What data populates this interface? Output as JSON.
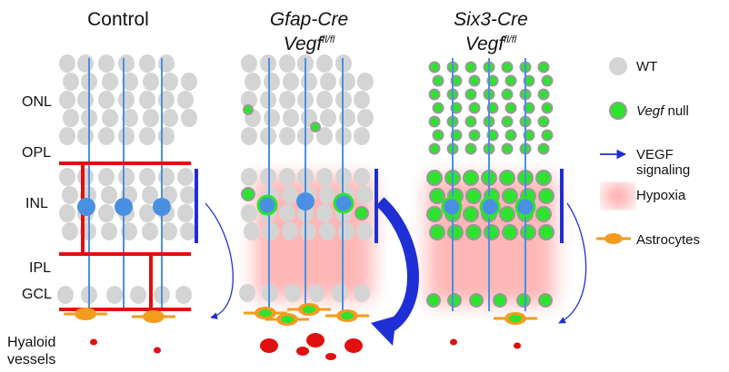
{
  "panels": [
    {
      "title": "Control",
      "title_italic": false,
      "subtitle": "",
      "subtitle_sup": ""
    },
    {
      "title": "Gfap-Cre",
      "title_italic": true,
      "subtitle": "Vegf",
      "subtitle_sup": "fl/fl"
    },
    {
      "title": "Six3-Cre",
      "title_italic": true,
      "subtitle": "Vegf",
      "subtitle_sup": "fl/fl"
    }
  ],
  "layer_labels": {
    "onl": "ONL",
    "opl": "OPL",
    "inl": "INL",
    "ipl": "IPL",
    "gcl": "GCL",
    "hyaloid": "Hyaloid vessels"
  },
  "legend": {
    "wt": "WT",
    "vegf_null_italic": "Vegf",
    "vegf_null_rest": " null",
    "signaling": "VEGF signaling",
    "hypoxia": "Hypoxia",
    "astrocytes": "Astrocytes"
  },
  "colors": {
    "wt_cell": "#d4d4d4",
    "null_cell": "#2ee32e",
    "null_ring": "#999999",
    "signal_blue": "#1f2fd6",
    "axon_blue": "#4a90e2",
    "vessel_red": "#e01010",
    "astrocyte": "#f39c1e",
    "hypoxia": "#ff7b7b"
  },
  "icons": {
    "signaling": "blue-arrow-icon",
    "astrocyte": "astrocyte-icon"
  }
}
